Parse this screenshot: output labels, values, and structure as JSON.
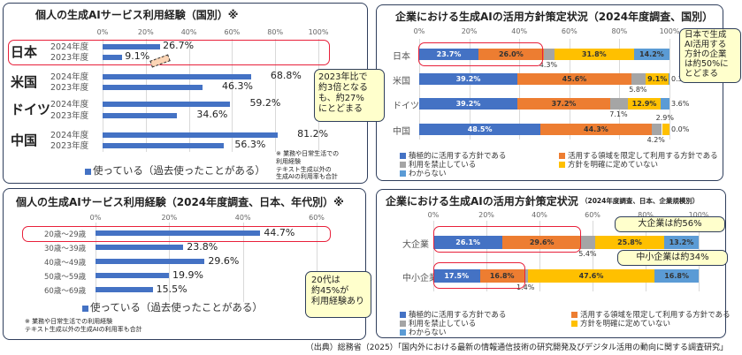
{
  "chart_data": [
    {
      "type": "bar",
      "title": "個人の生成AIサービス利用経験（国別）※",
      "xlim": [
        0,
        100
      ],
      "ticks": [
        "0%",
        "20%",
        "40%",
        "60%",
        "80%",
        "100%"
      ],
      "groups": [
        {
          "name": "日本",
          "rows": [
            {
              "year": "2024年度",
              "value": 26.7,
              "label": "26.7%"
            },
            {
              "year": "2023年度",
              "value": 9.1,
              "label": "9.1%"
            }
          ]
        },
        {
          "name": "米国",
          "rows": [
            {
              "year": "2024年度",
              "value": 68.8,
              "label": "68.8%"
            },
            {
              "year": "2023年度",
              "value": 46.3,
              "label": "46.3%"
            }
          ]
        },
        {
          "name": "ドイツ",
          "rows": [
            {
              "year": "2024年度",
              "value": 59.2,
              "label": "59.2%"
            },
            {
              "year": "2023年度",
              "value": 34.6,
              "label": "34.6%"
            }
          ]
        },
        {
          "name": "中国",
          "rows": [
            {
              "year": "2024年度",
              "value": 81.2,
              "label": "81.2%"
            },
            {
              "year": "2023年度",
              "value": 56.3,
              "label": "56.3%"
            }
          ]
        }
      ],
      "legend": "使っている（過去使ったことがある）",
      "note": [
        "※ 業務や日常生活での",
        "利用経験",
        "テキスト生成以外の",
        "生成AIの利用率も合計"
      ],
      "callout": [
        "2023年比で",
        "約3倍となるも、約27%",
        "にとどまる"
      ]
    },
    {
      "type": "stacked-bar",
      "title": "企業における生成AIの活用方針策定状況（2024年度調査、国別）",
      "xlim": [
        0,
        100
      ],
      "ticks": [
        "0%",
        "20%",
        "40%",
        "60%",
        "80%",
        "100%"
      ],
      "categories": [
        "日本",
        "米国",
        "ドイツ",
        "中国"
      ],
      "series": [
        {
          "name": "積極的に活用する方針である",
          "color": "#4472c4",
          "values": [
            23.7,
            39.2,
            39.2,
            48.5
          ]
        },
        {
          "name": "活用する領域を限定して利用する方針である",
          "color": "#ed7d31",
          "values": [
            26.0,
            45.6,
            37.2,
            44.3
          ]
        },
        {
          "name": "利用を禁止している",
          "color": "#a5a5a5",
          "values": [
            4.3,
            5.8,
            7.1,
            4.2
          ]
        },
        {
          "name": "方針を明確に定めていない",
          "color": "#ffc000",
          "values": [
            31.8,
            9.1,
            12.9,
            2.9
          ]
        },
        {
          "name": "わからない",
          "color": "#5b9bd5",
          "values": [
            14.2,
            0.3,
            3.6,
            0.0
          ]
        }
      ],
      "callout": [
        "日本で生成",
        "AI活用する",
        "方針の企業",
        "は約50%に",
        "とどまる"
      ]
    },
    {
      "type": "bar",
      "title": "個人の生成AIサービス利用経験（2024年度調査、日本、年代別）※",
      "xlim": [
        0,
        60
      ],
      "ticks": [
        "0%",
        "20%",
        "40%",
        "60%"
      ],
      "categories": [
        "20歳～29歳",
        "30歳～39歳",
        "40歳～49歳",
        "50歳～59歳",
        "60歳～69歳"
      ],
      "values": [
        44.7,
        23.8,
        29.6,
        19.9,
        15.5
      ],
      "labels": [
        "44.7%",
        "23.8%",
        "29.6%",
        "19.9%",
        "15.5%"
      ],
      "legend": "使っている（過去使ったことがある）",
      "note": [
        "※ 業務や日常生活での利用経験",
        "テキスト生成以外の生成AIの利用率も合計"
      ],
      "callout": [
        "20代は",
        "約45%が",
        "利用経験あり"
      ]
    },
    {
      "type": "stacked-bar",
      "title": "企業における生成AIの活用方針策定状況",
      "subtitle": "（2024年度調査、日本、企業規模別）",
      "xlim": [
        0,
        100
      ],
      "ticks": [
        "0%",
        "20%",
        "40%",
        "60%",
        "80%",
        "100%"
      ],
      "categories": [
        "大企業",
        "中小企業"
      ],
      "series": [
        {
          "name": "積極的に活用する方針である",
          "color": "#4472c4",
          "values": [
            26.1,
            17.5
          ]
        },
        {
          "name": "活用する領域を限定して利用する方針である",
          "color": "#ed7d31",
          "values": [
            29.6,
            16.8
          ]
        },
        {
          "name": "利用を禁止している",
          "color": "#a5a5a5",
          "values": [
            5.4,
            1.4
          ]
        },
        {
          "name": "方針を明確に定めていない",
          "color": "#ffc000",
          "values": [
            25.8,
            47.6
          ]
        },
        {
          "name": "わからない",
          "color": "#5b9bd5",
          "values": [
            13.2,
            16.8
          ]
        }
      ],
      "callouts": [
        "大企業は約56%",
        "中小企業は約34%"
      ]
    }
  ],
  "source": "（出典）総務省（2025）「国内外における最新の情報通信技術の研究開発及びデジタル活用の動向に関する調査研究」",
  "colors": {
    "bar": "#4472c4",
    "highlight": "#e8203a",
    "callout_bg": "#ffffcc"
  }
}
